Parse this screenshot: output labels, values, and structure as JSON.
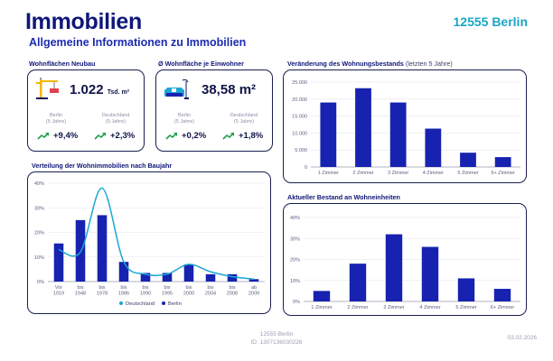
{
  "header": {
    "title": "Immobilien",
    "subtitle": "Allgemeine Informationen zu Immobilien",
    "plz": "12555 Berlin"
  },
  "kpis": [
    {
      "label": "Wohnflächen Neubau",
      "icon": "crane-icon",
      "value": "1.022",
      "unit": "Tsd. m²",
      "left_region": "Berlin",
      "left_period": "(5 Jahre)",
      "right_region": "Deutschland",
      "right_period": "(5 Jahre)",
      "left_trend": "+9,4%",
      "right_trend": "+2,3%"
    },
    {
      "label": "Ø Wohnfläche je Einwohner",
      "icon": "sofa-icon",
      "value": "38,58 m²",
      "unit": "",
      "left_region": "Berlin",
      "left_period": "(5 Jahre)",
      "right_region": "Deutschland",
      "right_period": "(5 Jahre)",
      "left_trend": "+0,2%",
      "right_trend": "+1,8%"
    }
  ],
  "colors": {
    "bar": "#1722b0",
    "line": "#1aa6d6",
    "trend": "#1fa04a",
    "border": "#1a1f4f"
  },
  "chart_data": [
    {
      "type": "bar",
      "title": "Veränderung des Wohnungsbestands",
      "title_suffix": "(letzten 5 Jahre)",
      "categories": [
        "1 Zimmer",
        "2 Zimmer",
        "3 Zimmer",
        "4 Zimmer",
        "5 Zimmer",
        "6+ Zimmer"
      ],
      "values": [
        19000,
        23200,
        19000,
        11300,
        4200,
        2900
      ],
      "yticks": [
        0,
        5000,
        10000,
        15000,
        20000,
        25000
      ],
      "ytick_labels": [
        "0",
        "5.000",
        "10.000",
        "15.000",
        "20.000",
        "25.000"
      ],
      "ylim": [
        0,
        25000
      ]
    },
    {
      "type": "bar+line",
      "title": "Verteilung der Wohnimmobilien nach Baujahr",
      "categories": [
        [
          "Vor",
          "1919"
        ],
        [
          "bis",
          "1948"
        ],
        [
          "bis",
          "1978"
        ],
        [
          "bis",
          "1986"
        ],
        [
          "bis",
          "1990"
        ],
        [
          "bis",
          "1995"
        ],
        [
          "bis",
          "2000"
        ],
        [
          "bis",
          "2004"
        ],
        [
          "bis",
          "2008"
        ],
        [
          "ab",
          "2009"
        ]
      ],
      "series": [
        {
          "name": "Berlin",
          "kind": "bar",
          "values": [
            15.5,
            25,
            27,
            8,
            3.5,
            3.5,
            7,
            3,
            3,
            1
          ]
        },
        {
          "name": "Deutschland",
          "kind": "line",
          "values": [
            13,
            12,
            38,
            8,
            3,
            3,
            7,
            4,
            2,
            1
          ]
        }
      ],
      "yticks": [
        0,
        10,
        20,
        30,
        40
      ],
      "ytick_labels": [
        "0%",
        "10%",
        "20%",
        "30%",
        "40%"
      ],
      "ylim": [
        0,
        40
      ],
      "legend": [
        "Deutschland",
        "Berlin"
      ]
    },
    {
      "type": "bar",
      "title": "Aktueller Bestand an Wohneinheiten",
      "categories": [
        "1 Zimmer",
        "2 Zimmer",
        "3 Zimmer",
        "4 Zimmer",
        "5 Zimmer",
        "6+ Zimmer"
      ],
      "values": [
        5,
        18,
        32,
        26,
        11,
        6
      ],
      "yticks": [
        0,
        10,
        20,
        30,
        40
      ],
      "ytick_labels": [
        "0%",
        "10%",
        "20%",
        "30%",
        "40%"
      ],
      "ylim": [
        0,
        40
      ]
    }
  ],
  "footer": {
    "line1": "12555 Berlin",
    "line2": "ID: 1307136030226",
    "date": "03.02.2026"
  }
}
